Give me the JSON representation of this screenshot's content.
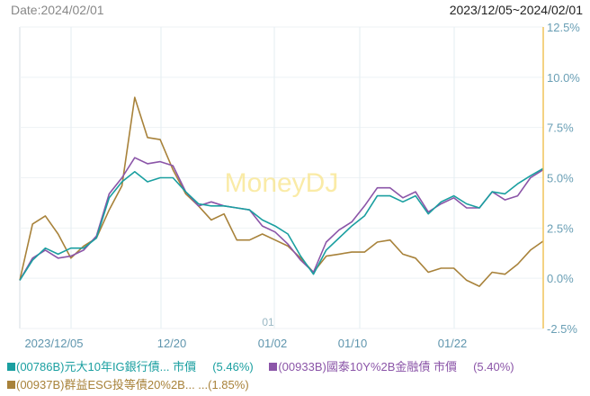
{
  "header": {
    "date_label": "Date:2024/02/01",
    "range_label": "2023/12/05~2024/02/01"
  },
  "watermark": "MoneyDJ",
  "crosshair_label": "01",
  "legend": [
    {
      "label": "(00786B)元大10年IG銀行債... 市價",
      "value": "(5.46%)",
      "color": "#1a9fa0"
    },
    {
      "label": "(00933B)國泰10Y%2B金融債 市價",
      "value": "(5.40%)",
      "color": "#8b55a8"
    },
    {
      "label": "(00937B)群益ESG投等債20%2B... ...",
      "value": "(1.85%)",
      "color": "#a8823a"
    }
  ],
  "chart_data": {
    "type": "line",
    "title": "",
    "xlabel": "",
    "ylabel": "",
    "ylim": [
      -2.5,
      12.5
    ],
    "y_ticks": [
      "12.5%",
      "10.0%",
      "7.5%",
      "5.0%",
      "2.5%",
      "0.0%",
      "-2.5%"
    ],
    "y_tick_values": [
      12.5,
      10.0,
      7.5,
      5.0,
      2.5,
      0.0,
      -2.5
    ],
    "x_tick_labels": [
      "2023/12/05",
      "12/20",
      "01/02",
      "01/10",
      "01/22"
    ],
    "x_tick_index": [
      2.6,
      11.5,
      19.5,
      25.7,
      33.0
    ],
    "grid": true,
    "legend_position": "bottom",
    "y_axis_position": "right",
    "series": [
      {
        "name": "(00786B)元大10年IG銀行債... 市價",
        "color": "#1a9fa0",
        "final_value": 5.46,
        "values": [
          -0.1,
          0.9,
          1.5,
          1.2,
          1.5,
          1.5,
          2.0,
          4.0,
          4.8,
          5.3,
          4.8,
          5.0,
          5.0,
          4.3,
          3.7,
          3.6,
          3.6,
          3.5,
          3.4,
          2.9,
          2.6,
          2.2,
          1.1,
          0.2,
          1.4,
          2.0,
          2.6,
          3.1,
          4.1,
          4.1,
          3.8,
          4.1,
          3.2,
          3.8,
          4.1,
          3.7,
          3.5,
          4.3,
          4.2,
          4.7,
          5.1,
          5.46
        ]
      },
      {
        "name": "(00933B)國泰10Y%2B金融債 市價",
        "color": "#8b55a8",
        "final_value": 5.4,
        "values": [
          -0.1,
          1.0,
          1.4,
          1.0,
          1.1,
          1.4,
          2.1,
          4.2,
          5.0,
          6.0,
          5.7,
          5.8,
          5.6,
          4.3,
          3.6,
          3.8,
          3.6,
          3.5,
          3.4,
          2.6,
          2.3,
          1.7,
          0.9,
          0.3,
          1.8,
          2.4,
          2.8,
          3.6,
          4.5,
          4.5,
          4.0,
          4.3,
          3.3,
          3.7,
          4.0,
          3.5,
          3.5,
          4.3,
          3.9,
          4.1,
          5.0,
          5.4
        ]
      },
      {
        "name": "(00937B)群益ESG投等債20%2B...",
        "color": "#a8823a",
        "final_value": 1.85,
        "values": [
          -0.1,
          2.7,
          3.1,
          2.2,
          1.0,
          1.6,
          2.0,
          3.4,
          4.6,
          9.0,
          7.0,
          6.9,
          5.4,
          4.2,
          3.6,
          2.9,
          3.2,
          1.9,
          1.9,
          2.2,
          1.9,
          1.6,
          1.0,
          0.3,
          1.1,
          1.2,
          1.3,
          1.3,
          1.8,
          1.9,
          1.2,
          1.0,
          0.3,
          0.5,
          0.5,
          -0.1,
          -0.4,
          0.3,
          0.2,
          0.7,
          1.4,
          1.85
        ]
      }
    ]
  }
}
